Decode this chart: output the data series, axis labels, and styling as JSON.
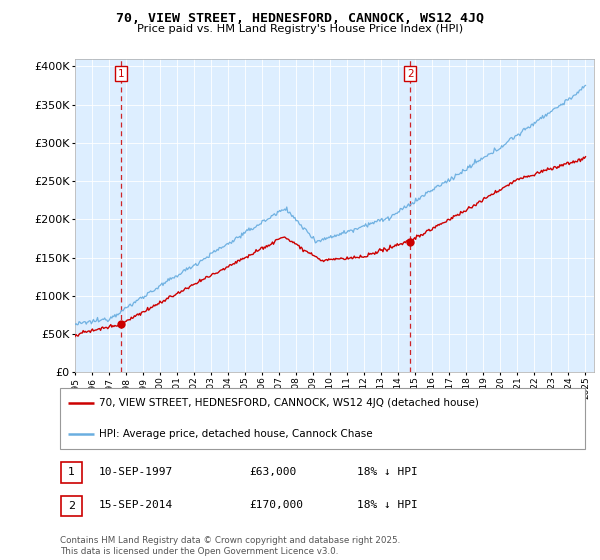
{
  "title": "70, VIEW STREET, HEDNESFORD, CANNOCK, WS12 4JQ",
  "subtitle": "Price paid vs. HM Land Registry's House Price Index (HPI)",
  "sale1_date": "10-SEP-1997",
  "sale1_price": 63000,
  "sale1_label": "18% ↓ HPI",
  "sale2_date": "15-SEP-2014",
  "sale2_price": 170000,
  "sale2_label": "18% ↓ HPI",
  "legend_line1": "70, VIEW STREET, HEDNESFORD, CANNOCK, WS12 4JQ (detached house)",
  "legend_line2": "HPI: Average price, detached house, Cannock Chase",
  "copyright_text": "Contains HM Land Registry data © Crown copyright and database right 2025.\nThis data is licensed under the Open Government Licence v3.0.",
  "hpi_color": "#6aaee0",
  "price_color": "#cc0000",
  "dashed_color": "#cc0000",
  "ylim_min": 0,
  "ylim_max": 410000,
  "sale1_x": 1997.7,
  "sale2_x": 2014.7,
  "chart_bg": "#ddeeff",
  "fig_bg": "#ffffff"
}
